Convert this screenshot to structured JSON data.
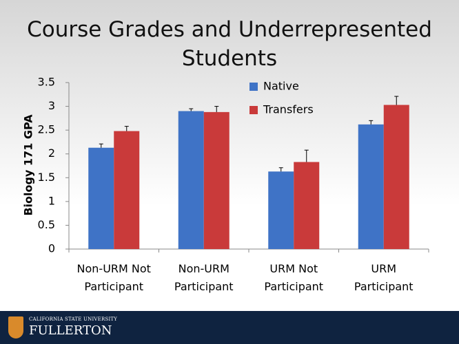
{
  "chart_data": {
    "type": "bar",
    "title": "Course Grades and Underrepresented Students",
    "y_label": "Biology 171 GPA",
    "categories": [
      "Non-URM Not Participant",
      "Non-URM Participant",
      "URM Not Participant",
      "URM Participant"
    ],
    "series": [
      {
        "name": "Native",
        "color": "#3f73c6",
        "values": [
          2.13,
          2.9,
          1.63,
          2.62
        ],
        "errors": [
          0.08,
          0.05,
          0.08,
          0.08
        ]
      },
      {
        "name": "Transfers",
        "color": "#c93a3a",
        "values": [
          2.48,
          2.88,
          1.83,
          3.03
        ],
        "errors": [
          0.1,
          0.12,
          0.25,
          0.18
        ]
      }
    ],
    "ylim": [
      0,
      3.5
    ],
    "yticks": [
      0,
      0.5,
      1,
      1.5,
      2,
      2.5,
      3,
      3.5
    ],
    "grid": false,
    "legend": "top"
  },
  "footer": {
    "university": "CALIFORNIA STATE UNIVERSITY",
    "name": "FULLERTON"
  }
}
